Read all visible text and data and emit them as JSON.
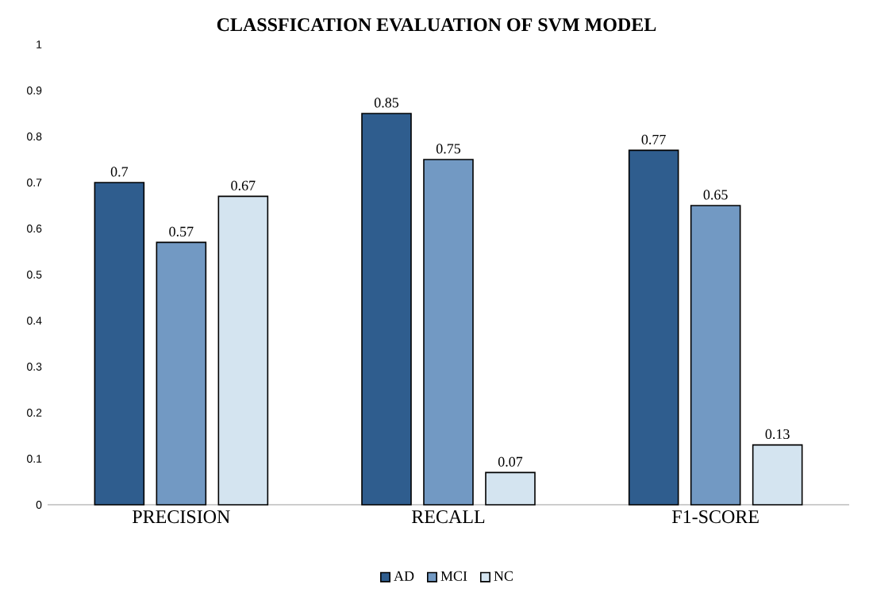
{
  "chart_data": {
    "type": "bar",
    "title": "CLASSFICATION EVALUATION OF SVM MODEL",
    "categories": [
      "PRECISION",
      "RECALL",
      "F1-SCORE"
    ],
    "series": [
      {
        "name": "AD",
        "color": "#2f5d8e",
        "values": [
          0.7,
          0.85,
          0.77
        ]
      },
      {
        "name": "MCI",
        "color": "#7299c3",
        "values": [
          0.57,
          0.75,
          0.65
        ]
      },
      {
        "name": "NC",
        "color": "#d4e4f0",
        "values": [
          0.67,
          0.07,
          0.13
        ]
      }
    ],
    "ylim": [
      0,
      1
    ],
    "yticks": [
      0,
      0.1,
      0.2,
      0.3,
      0.4,
      0.5,
      0.6,
      0.7,
      0.8,
      0.9,
      1
    ],
    "grid": false,
    "legend": "bottom",
    "data_labels": true
  }
}
